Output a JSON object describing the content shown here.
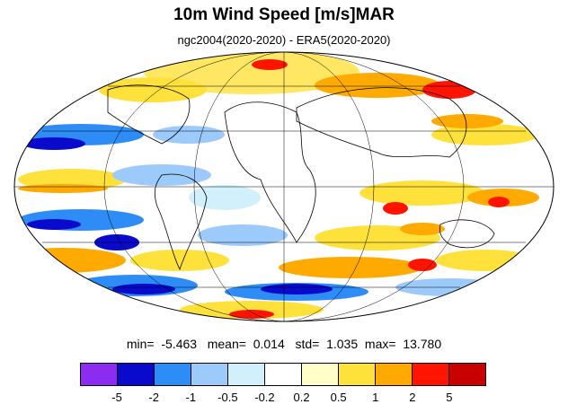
{
  "title": "10m Wind Speed [m/s]MAR",
  "subtitle": "ngc2004(2020-2020) - ERA5(2020-2020)",
  "stats": {
    "min_label": "min=",
    "min": "-5.463",
    "mean_label": "mean=",
    "mean": "0.014",
    "std_label": "std=",
    "std": "1.035",
    "max_label": "max=",
    "max": "13.780"
  },
  "colorbar": {
    "colors": [
      "#8b2cf0",
      "#0a0acd",
      "#2d8cf5",
      "#9ccafa",
      "#d2f0fc",
      "#ffffff",
      "#ffffc8",
      "#ffe13c",
      "#ffaa00",
      "#ff1400",
      "#c80000"
    ],
    "ticks": [
      "-5",
      "-2",
      "-1",
      "-0.5",
      "-0.2",
      "0.2",
      "0.5",
      "1",
      "2",
      "5"
    ]
  },
  "map": {
    "projection": "mollweide",
    "ocean_background": "#ffffff",
    "coastline_color": "#000000"
  }
}
